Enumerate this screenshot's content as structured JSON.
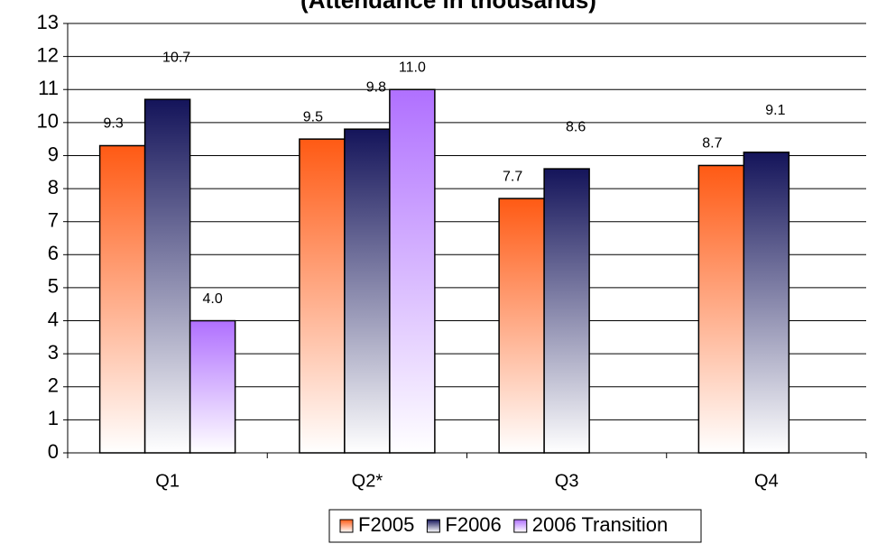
{
  "chart_data": {
    "type": "bar",
    "title": "(Attendance in thousands)",
    "categories": [
      "Q1",
      "Q2*",
      "Q3",
      "Q4"
    ],
    "series": [
      {
        "name": "F2005",
        "color": "#ff5a14",
        "values": [
          9.3,
          9.5,
          7.7,
          8.7
        ],
        "value_labels": [
          "9.3",
          "9.5",
          "7.7",
          "8.7"
        ]
      },
      {
        "name": "F2006",
        "color": "#14145a",
        "values": [
          10.7,
          9.8,
          8.6,
          9.1
        ],
        "value_labels": [
          "10.7",
          "9.8",
          "8.6",
          "9.1"
        ]
      },
      {
        "name": "2006 Transition",
        "color": "#b070ff",
        "values": [
          4.0,
          11.0,
          null,
          null
        ],
        "value_labels": [
          "4.0",
          "11.0",
          null,
          null
        ]
      }
    ],
    "ylim": [
      0,
      13
    ],
    "yticks": [
      0,
      1,
      2,
      3,
      4,
      5,
      6,
      7,
      8,
      9,
      10,
      11,
      12,
      13
    ],
    "grid": true,
    "legend": "bottom"
  }
}
